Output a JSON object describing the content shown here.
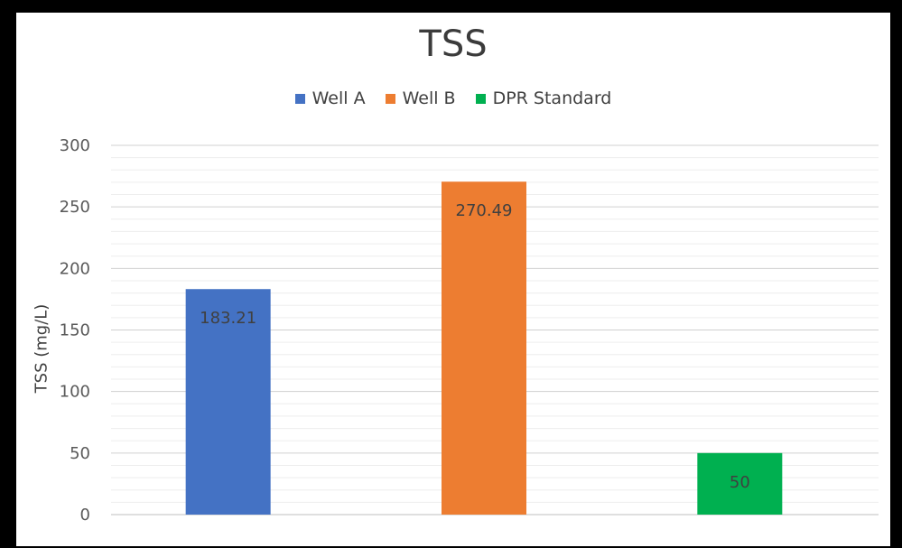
{
  "chart_data": {
    "type": "bar",
    "title": "TSS",
    "ylabel": "TSS  (mg/L)",
    "xlabel": "",
    "ylim": [
      0,
      300
    ],
    "yticks": [
      "0",
      "50",
      "100",
      "150",
      "200",
      "250",
      "300"
    ],
    "grid": true,
    "legend_position": "top",
    "series": [
      {
        "name": "Well A",
        "value": 183.21,
        "label": "183.21",
        "color": "#4472c4"
      },
      {
        "name": "Well B",
        "value": 270.49,
        "label": "270.49",
        "color": "#ed7d31"
      },
      {
        "name": "DPR Standard",
        "value": 50,
        "label": "50",
        "color": "#00b050"
      }
    ]
  }
}
